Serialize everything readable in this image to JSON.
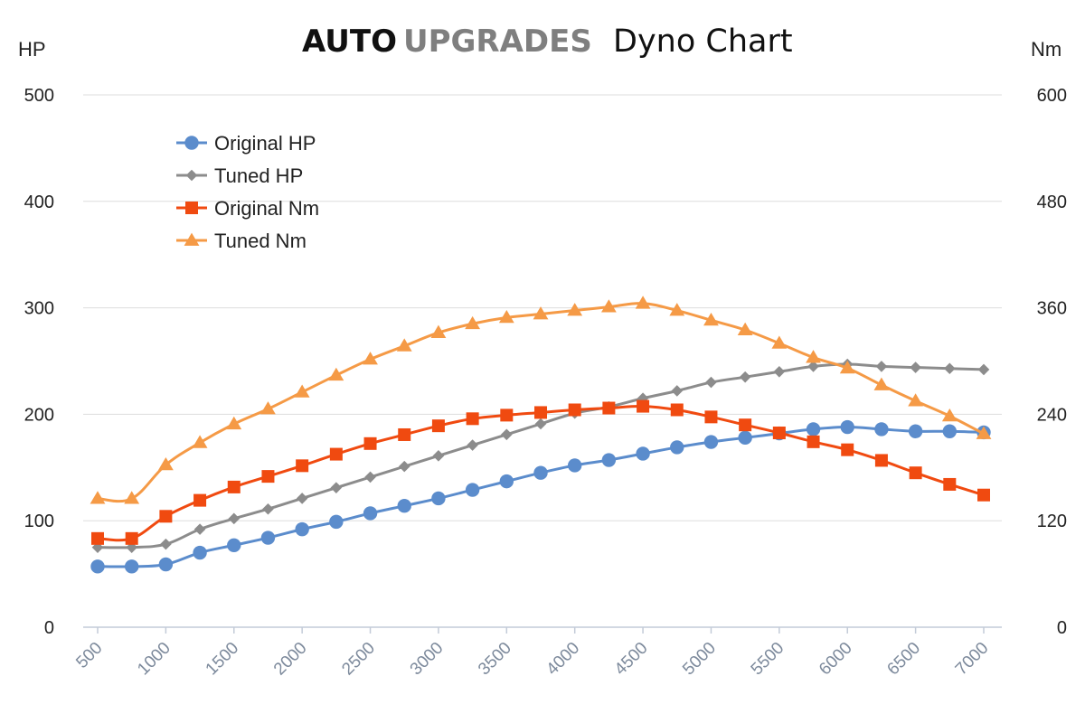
{
  "title": {
    "brand_auto": "AUTO",
    "brand_upgrades": "UPGRADES",
    "main": "Dyno Chart"
  },
  "chart_data": {
    "type": "line",
    "title": "AUTO UPGRADES Dyno Chart",
    "xlabel": "",
    "y_left_label": "HP",
    "y_right_label": "Nm",
    "ylim_left": [
      0,
      500
    ],
    "ylim_right": [
      0,
      600
    ],
    "yticks_left": [
      "0",
      "100",
      "200",
      "300",
      "400",
      "500"
    ],
    "yticks_right": [
      "0",
      "120",
      "240",
      "360",
      "480",
      "600"
    ],
    "xlim": [
      500,
      7000
    ],
    "xticks": [
      "500",
      "1000",
      "1500",
      "2000",
      "2500",
      "3000",
      "3500",
      "4000",
      "4500",
      "5000",
      "5500",
      "6000",
      "6500",
      "7000"
    ],
    "grid": "horizontal",
    "legend_position": "top-left",
    "x": [
      500,
      750,
      1000,
      1250,
      1500,
      1750,
      2000,
      2250,
      2500,
      2750,
      3000,
      3250,
      3500,
      3750,
      4000,
      4250,
      4500,
      4750,
      5000,
      5250,
      5500,
      5750,
      6000,
      6250,
      6500,
      6750,
      7000
    ],
    "series": [
      {
        "name": "Original HP",
        "axis": "left",
        "color": "#5b8ccc",
        "marker": "circle",
        "values": [
          57,
          57,
          59,
          70,
          77,
          84,
          92,
          99,
          107,
          114,
          121,
          129,
          137,
          145,
          152,
          157,
          163,
          169,
          174,
          178,
          182,
          186,
          188,
          186,
          184,
          184,
          183
        ]
      },
      {
        "name": "Tuned HP",
        "axis": "left",
        "color": "#8c8c8c",
        "marker": "diamond",
        "values": [
          75,
          75,
          78,
          92,
          102,
          111,
          121,
          131,
          141,
          151,
          161,
          171,
          181,
          191,
          201,
          207,
          215,
          222,
          230,
          235,
          240,
          245,
          247,
          245,
          244,
          243,
          242
        ]
      },
      {
        "name": "Original Nm",
        "axis": "right",
        "color": "#f04a10",
        "marker": "square",
        "values": [
          100,
          100,
          125,
          143,
          158,
          170,
          182,
          195,
          207,
          217,
          227,
          235,
          239,
          242,
          245,
          247,
          249,
          245,
          237,
          228,
          219,
          209,
          200,
          188,
          174,
          161,
          149
        ]
      },
      {
        "name": "Tuned Nm",
        "axis": "right",
        "color": "#f59a46",
        "marker": "triangle",
        "values": [
          145,
          145,
          183,
          208,
          229,
          246,
          265,
          284,
          302,
          317,
          332,
          342,
          349,
          353,
          357,
          361,
          365,
          357,
          346,
          335,
          320,
          304,
          292,
          273,
          255,
          238,
          218
        ]
      }
    ]
  }
}
